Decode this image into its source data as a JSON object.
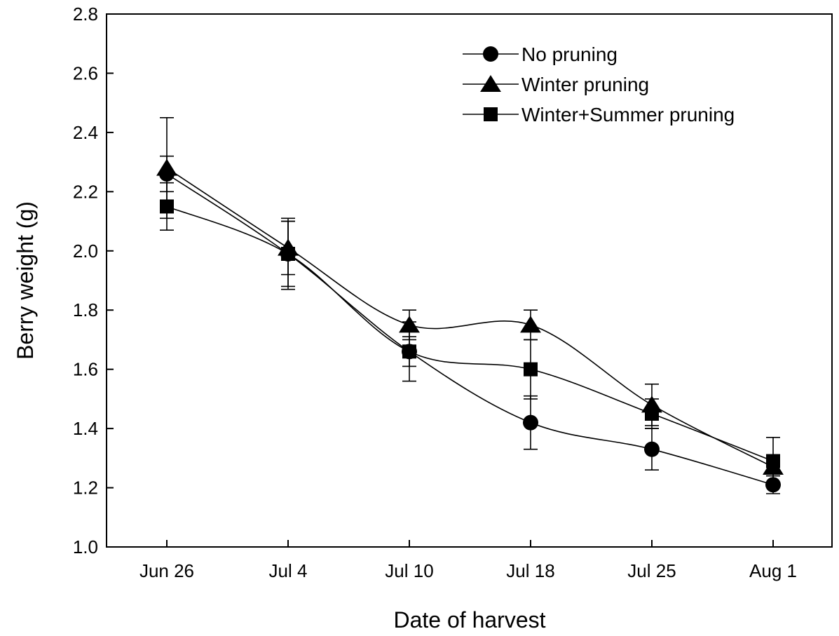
{
  "chart_data": {
    "type": "line",
    "xlabel": "Date of harvest",
    "ylabel": "Berry weight (g)",
    "categories": [
      "Jun 26",
      "Jul 4",
      "Jul 10",
      "Jul 18",
      "Jul 25",
      "Aug 1"
    ],
    "ylim": [
      1.0,
      2.8
    ],
    "yticks": [
      1.0,
      1.2,
      1.4,
      1.6,
      1.8,
      2.0,
      2.2,
      2.4,
      2.6,
      2.8
    ],
    "grid": false,
    "legend_position": "top-right",
    "series": [
      {
        "name": "No pruning",
        "marker": "circle",
        "values": [
          2.26,
          1.99,
          1.66,
          1.42,
          1.33,
          1.21
        ],
        "errors": [
          0.06,
          0.11,
          0.1,
          0.09,
          0.07,
          0.03
        ]
      },
      {
        "name": "Winter pruning",
        "marker": "triangle",
        "values": [
          2.28,
          2.01,
          1.75,
          1.75,
          1.48,
          1.27
        ],
        "errors": [
          0.17,
          0.09,
          0.05,
          0.05,
          0.07,
          0.03
        ]
      },
      {
        "name": "Winter+Summer pruning",
        "marker": "square",
        "values": [
          2.15,
          1.99,
          1.66,
          1.6,
          1.45,
          1.29
        ],
        "errors": [
          0.08,
          0.12,
          0.05,
          0.1,
          0.05,
          0.08
        ]
      }
    ]
  }
}
